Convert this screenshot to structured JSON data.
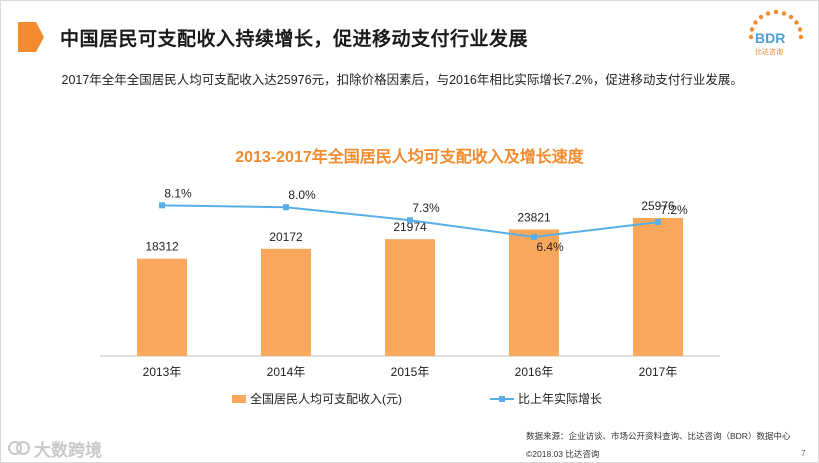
{
  "title": "中国居民可支配收入持续增长，促进移动支付行业发展",
  "logo": {
    "text": "BDR",
    "sub": "比达咨询"
  },
  "description": "2017年全年全国居民人均可支配收入达25976元，扣除价格因素后，与2016年相比实际增长7.2%，促进移动支付行业发展。",
  "chart_data": {
    "type": "bar",
    "title": "2013-2017年全国居民人均可支配收入及增长速度",
    "categories": [
      "2013年",
      "2014年",
      "2015年",
      "2016年",
      "2017年"
    ],
    "series": [
      {
        "name": "全国居民人均可支配收入(元)",
        "type": "bar",
        "values": [
          18312,
          20172,
          21974,
          23821,
          25976
        ],
        "labels": [
          "18312",
          "20172",
          "21974",
          "23821",
          "25976"
        ],
        "color": "#f9a75a"
      },
      {
        "name": "比上年实际增长",
        "type": "line",
        "values": [
          8.1,
          8.0,
          7.3,
          6.4,
          7.2
        ],
        "labels": [
          "8.1%",
          "8.0%",
          "7.3%",
          "6.4%",
          "7.2%"
        ],
        "color": "#5aaee6"
      }
    ],
    "ylim": [
      0,
      35000
    ],
    "y2lim": [
      0,
      10
    ],
    "xlabel": "",
    "ylabel": ""
  },
  "legend": {
    "bar": "全国居民人均可支配收入(元)",
    "line": "比上年实际增长"
  },
  "source": "数据来源：企业访谈、市场公开资料查询、比达咨询（BDR）数据中心",
  "copyright": "©2018.03 比达咨询",
  "page_number": "7",
  "watermark": "大数跨境",
  "colors": {
    "accent": "#f28a2e",
    "bar": "#f9a75a",
    "line": "#5aaee6"
  }
}
